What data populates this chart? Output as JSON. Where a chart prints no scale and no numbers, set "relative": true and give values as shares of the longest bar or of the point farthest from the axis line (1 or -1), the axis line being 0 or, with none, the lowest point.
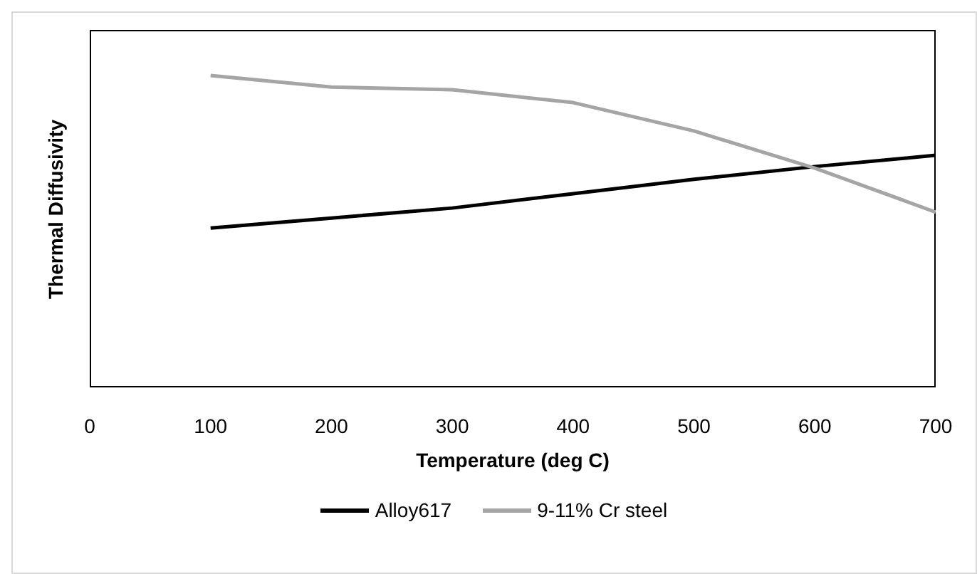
{
  "chart_data": {
    "type": "line",
    "relative": true,
    "xlabel": "Temperature (deg C)",
    "ylabel": "Thermal Diffusivity",
    "x": [
      100,
      200,
      300,
      400,
      500,
      600,
      700
    ],
    "xlim": [
      0,
      700
    ],
    "xticks": [
      0,
      100,
      200,
      300,
      400,
      500,
      600,
      700
    ],
    "grid": false,
    "legend": "bottom",
    "marker": "none",
    "line_style": "solid",
    "series": [
      {
        "name": "Alloy617",
        "color": "#000000",
        "values": [
          0.511,
          0.543,
          0.575,
          0.621,
          0.667,
          0.708,
          0.744
        ]
      },
      {
        "name": "9-11% Cr steel",
        "color": "#a5a5a5",
        "values": [
          1,
          0.963,
          0.954,
          0.913,
          0.822,
          0.703,
          0.562
        ]
      }
    ]
  }
}
